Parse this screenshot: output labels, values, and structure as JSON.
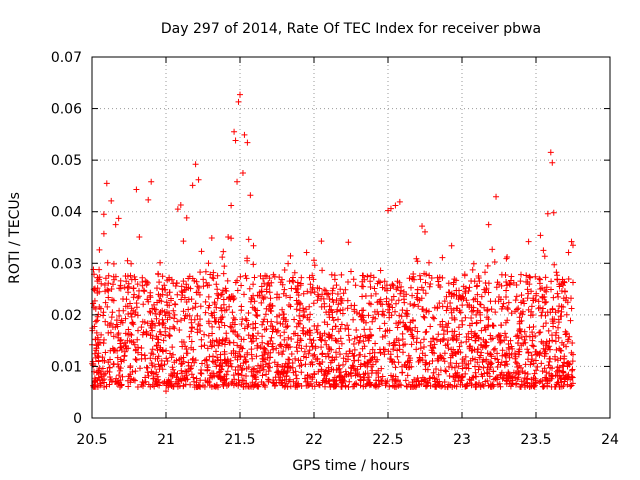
{
  "chart_data": {
    "type": "scatter",
    "title": "Day 297 of 2014, Rate Of TEC Index for receiver pbwa",
    "xlabel": "GPS time / hours",
    "ylabel": "ROTI / TECUs",
    "xlim": [
      20.5,
      24
    ],
    "ylim": [
      0,
      0.07
    ],
    "xticks": [
      20.5,
      21,
      21.5,
      22,
      22.5,
      23,
      23.5,
      24
    ],
    "xtick_labels": [
      "20.5",
      "21",
      "21.5",
      "22",
      "22.5",
      "23",
      "23.5",
      "24"
    ],
    "yticks": [
      0,
      0.01,
      0.02,
      0.03,
      0.04,
      0.05,
      0.06,
      0.07
    ],
    "ytick_labels": [
      "0",
      "0.01",
      "0.02",
      "0.03",
      "0.04",
      "0.05",
      "0.06",
      "0.07"
    ],
    "grid": true,
    "grid_style": "dotted",
    "marker": "+",
    "color": "#ff0000",
    "x_data_range": [
      20.5,
      23.75
    ],
    "series": [
      {
        "name": "ROTI",
        "points": [
          [
            20.5,
            0.0142
          ],
          [
            20.51,
            0.0288
          ],
          [
            20.52,
            0.0251
          ],
          [
            20.53,
            0.0135
          ],
          [
            20.54,
            0.0089
          ],
          [
            20.55,
            0.0326
          ],
          [
            20.56,
            0.0212
          ],
          [
            20.57,
            0.0118
          ],
          [
            20.58,
            0.0395
          ],
          [
            20.6,
            0.0455
          ],
          [
            20.61,
            0.0165
          ],
          [
            20.62,
            0.0098
          ],
          [
            20.63,
            0.0421
          ],
          [
            20.65,
            0.0132
          ],
          [
            20.66,
            0.0375
          ],
          [
            20.68,
            0.0387
          ],
          [
            20.7,
            0.0189
          ],
          [
            20.72,
            0.0121
          ],
          [
            20.74,
            0.0305
          ],
          [
            20.76,
            0.0276
          ],
          [
            20.78,
            0.0147
          ],
          [
            20.8,
            0.0443
          ],
          [
            20.82,
            0.0351
          ],
          [
            20.84,
            0.0272
          ],
          [
            20.86,
            0.0115
          ],
          [
            20.88,
            0.0423
          ],
          [
            20.9,
            0.0458
          ],
          [
            20.92,
            0.0061
          ],
          [
            20.94,
            0.0224
          ],
          [
            20.96,
            0.0301
          ],
          [
            20.98,
            0.0129
          ],
          [
            21.0,
            0.0052
          ],
          [
            21.02,
            0.0161
          ],
          [
            21.04,
            0.0268
          ],
          [
            21.06,
            0.0221
          ],
          [
            21.08,
            0.0405
          ],
          [
            21.1,
            0.0413
          ],
          [
            21.12,
            0.0109
          ],
          [
            21.14,
            0.0388
          ],
          [
            21.16,
            0.0198
          ],
          [
            21.18,
            0.0451
          ],
          [
            21.2,
            0.0492
          ],
          [
            21.22,
            0.0462
          ],
          [
            21.24,
            0.0323
          ],
          [
            21.26,
            0.0141
          ],
          [
            21.28,
            0.0257
          ],
          [
            21.3,
            0.0083
          ],
          [
            21.32,
            0.0282
          ],
          [
            21.34,
            0.0214
          ],
          [
            21.36,
            0.0176
          ],
          [
            21.38,
            0.0312
          ],
          [
            21.4,
            0.0247
          ],
          [
            21.42,
            0.0351
          ],
          [
            21.44,
            0.0412
          ],
          [
            21.46,
            0.0555
          ],
          [
            21.47,
            0.0538
          ],
          [
            21.48,
            0.0458
          ],
          [
            21.49,
            0.0613
          ],
          [
            21.5,
            0.0627
          ],
          [
            21.52,
            0.0475
          ],
          [
            21.53,
            0.0549
          ],
          [
            21.55,
            0.0534
          ],
          [
            21.57,
            0.0432
          ],
          [
            21.59,
            0.0298
          ],
          [
            21.61,
            0.0154
          ],
          [
            21.63,
            0.0237
          ],
          [
            21.65,
            0.0121
          ],
          [
            21.7,
            0.0256
          ],
          [
            21.75,
            0.0186
          ],
          [
            21.8,
            0.0249
          ],
          [
            21.85,
            0.0124
          ],
          [
            21.9,
            0.0198
          ],
          [
            21.95,
            0.0321
          ],
          [
            22.0,
            0.0306
          ],
          [
            22.05,
            0.0343
          ],
          [
            22.1,
            0.0162
          ],
          [
            22.15,
            0.0118
          ],
          [
            22.2,
            0.0242
          ],
          [
            22.25,
            0.0284
          ],
          [
            22.3,
            0.0112
          ],
          [
            22.35,
            0.0156
          ],
          [
            22.4,
            0.0195
          ],
          [
            22.45,
            0.0286
          ],
          [
            22.5,
            0.0402
          ],
          [
            22.52,
            0.0406
          ],
          [
            22.55,
            0.0412
          ],
          [
            22.58,
            0.0419
          ],
          [
            22.6,
            0.0153
          ],
          [
            22.65,
            0.0221
          ],
          [
            22.7,
            0.0304
          ],
          [
            22.73,
            0.0372
          ],
          [
            22.75,
            0.0361
          ],
          [
            22.8,
            0.0127
          ],
          [
            22.85,
            0.0273
          ],
          [
            22.9,
            0.0176
          ],
          [
            22.93,
            0.0334
          ],
          [
            22.95,
            0.0168
          ],
          [
            23.0,
            0.0234
          ],
          [
            23.05,
            0.0138
          ],
          [
            23.08,
            0.0299
          ],
          [
            23.1,
            0.0185
          ],
          [
            23.15,
            0.0249
          ],
          [
            23.18,
            0.0375
          ],
          [
            23.2,
            0.0211
          ],
          [
            23.23,
            0.0429
          ],
          [
            23.25,
            0.0157
          ],
          [
            23.3,
            0.0309
          ],
          [
            23.35,
            0.0262
          ],
          [
            23.4,
            0.0141
          ],
          [
            23.45,
            0.0342
          ],
          [
            23.48,
            0.0228
          ],
          [
            23.5,
            0.0123
          ],
          [
            23.53,
            0.0354
          ],
          [
            23.55,
            0.0325
          ],
          [
            23.58,
            0.0396
          ],
          [
            23.6,
            0.0515
          ],
          [
            23.61,
            0.0495
          ],
          [
            23.62,
            0.0398
          ],
          [
            23.65,
            0.0208
          ],
          [
            23.68,
            0.0102
          ],
          [
            23.7,
            0.0162
          ],
          [
            23.72,
            0.0321
          ],
          [
            23.74,
            0.0342
          ],
          [
            23.75,
            0.0335
          ]
        ]
      }
    ]
  }
}
